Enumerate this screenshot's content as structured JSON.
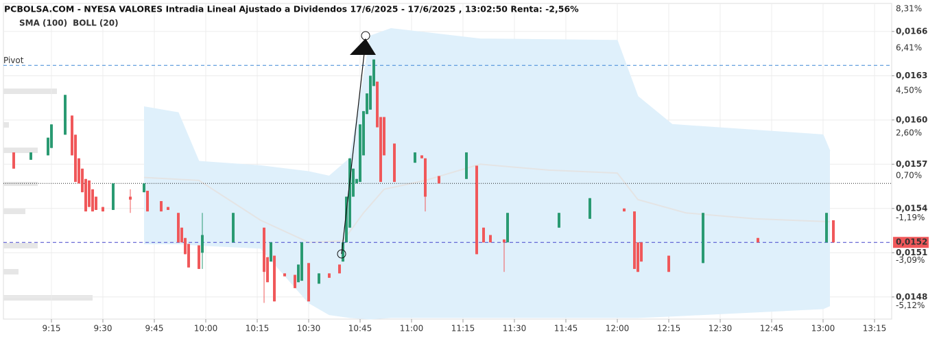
{
  "chart_data": {
    "type": "candlestick",
    "title": "PCBOLSA.COM - NYESA VALORES Intradia Lineal Ajustado a Dividendos 17/6/2025 - 17/6/2025 , 13:02:50 Renta: -2,56%",
    "legend": [
      {
        "name": "SMA (100)",
        "color": "#a9d3ef"
      },
      {
        "name": "BOLL (20)",
        "color": "#c8c8c8"
      }
    ],
    "up_color": "#2a9a72",
    "down_color": "#f0585a",
    "grid": true,
    "xlim": [
      "9:01",
      "13:20"
    ],
    "xticks": [
      "9:15",
      "9:30",
      "9:45",
      "10:00",
      "10:15",
      "10:30",
      "10:45",
      "11:00",
      "11:15",
      "11:30",
      "11:45",
      "12:00",
      "12:15",
      "12:30",
      "12:45",
      "13:00",
      "13:15"
    ],
    "ylim": [
      0.01465,
      0.01679
    ],
    "yticks": [
      {
        "value": 0.0166,
        "label": "0,0166"
      },
      {
        "value": 0.0163,
        "label": "0,0163"
      },
      {
        "value": 0.016,
        "label": "0,0160"
      },
      {
        "value": 0.0157,
        "label": "0,0157"
      },
      {
        "value": 0.0154,
        "label": "0,0154"
      },
      {
        "value": 0.0151,
        "label": "0,0151"
      },
      {
        "value": 0.0148,
        "label": "0,0148"
      }
    ],
    "y2lim": [
      -5.72,
      8.4
    ],
    "y2ticks": [
      {
        "value": 8.31,
        "label": "8,31%"
      },
      {
        "value": 6.41,
        "label": "6,41%"
      },
      {
        "value": 4.5,
        "label": "4,50%"
      },
      {
        "value": 2.6,
        "label": "2,60%"
      },
      {
        "value": 0.7,
        "label": "0,70%"
      },
      {
        "value": -1.19,
        "label": "-1,19%"
      },
      {
        "value": -3.09,
        "label": "-3,09%"
      },
      {
        "value": -5.12,
        "label": "-5,12%"
      }
    ],
    "pivot": {
      "label": "Pivot",
      "value": 0.01637,
      "color": "#3b86d6"
    },
    "previous_close": 0.01557,
    "last_price": {
      "value": 0.01517,
      "label": "0,0152",
      "color": "#4444cc"
    },
    "candles": {
      "x": [
        "9:04",
        "9:09",
        "9:14",
        "9:15",
        "9:19",
        "9:21",
        "9:22",
        "9:23",
        "9:24",
        "9:25",
        "9:26",
        "9:27",
        "9:28",
        "9:30",
        "9:33",
        "9:38",
        "9:42",
        "9:43",
        "9:47",
        "9:49",
        "9:52",
        "9:53",
        "9:54",
        "9:55",
        "9:58",
        "9:59",
        "10:08",
        "10:17",
        "10:18",
        "10:19",
        "10:20",
        "10:23",
        "10:26",
        "10:27",
        "10:28",
        "10:30",
        "10:33",
        "10:36",
        "10:39",
        "10:40",
        "10:41",
        "10:42",
        "10:43",
        "10:44",
        "10:45",
        "10:46",
        "10:47",
        "10:48",
        "10:49",
        "10:50",
        "10:51",
        "10:52",
        "10:55",
        "11:01",
        "11:03",
        "11:04",
        "11:08",
        "11:16",
        "11:19",
        "11:21",
        "11:23",
        "11:27",
        "11:28",
        "11:43",
        "11:52",
        "12:02",
        "12:05",
        "12:06",
        "12:07",
        "12:15",
        "12:25",
        "12:41",
        "13:01",
        "13:03"
      ],
      "open": [
        0.01578,
        0.01573,
        0.01576,
        0.01581,
        0.0159,
        0.01603,
        0.0159,
        0.01574,
        0.01567,
        0.0156,
        0.01559,
        0.01553,
        0.01548,
        0.01541,
        0.01539,
        0.01548,
        0.01551,
        0.01552,
        0.01545,
        0.01541,
        0.01537,
        0.01527,
        0.0152,
        0.01516,
        0.01515,
        0.0151,
        0.01517,
        0.01527,
        0.01507,
        0.01504,
        0.01508,
        0.01496,
        0.01495,
        0.0149,
        0.01491,
        0.01503,
        0.01489,
        0.01496,
        0.01502,
        0.01504,
        0.01517,
        0.01527,
        0.01548,
        0.01557,
        0.01558,
        0.01576,
        0.01604,
        0.01607,
        0.01623,
        0.01626,
        0.01602,
        0.01602,
        0.01584,
        0.01571,
        0.01576,
        0.01574,
        0.01562,
        0.0156,
        0.01569,
        0.01527,
        0.01522,
        0.01519,
        0.01517,
        0.01527,
        0.01533,
        0.0154,
        0.01538,
        0.01517,
        0.01517,
        0.01508,
        0.01503,
        0.0152,
        0.01517,
        0.01532
      ],
      "high": [
        0.01578,
        0.01578,
        0.01588,
        0.01597,
        0.01617,
        0.01603,
        0.0159,
        0.01574,
        0.01567,
        0.0156,
        0.01559,
        0.01553,
        0.01548,
        0.01541,
        0.01557,
        0.01553,
        0.01557,
        0.01552,
        0.01545,
        0.01541,
        0.01537,
        0.01527,
        0.0152,
        0.01516,
        0.01515,
        0.01537,
        0.01537,
        0.01527,
        0.01507,
        0.01517,
        0.01508,
        0.01496,
        0.01495,
        0.01502,
        0.01517,
        0.01503,
        0.01496,
        0.01496,
        0.01502,
        0.01517,
        0.01548,
        0.01574,
        0.01567,
        0.0156,
        0.01597,
        0.01606,
        0.01618,
        0.0163,
        0.01641,
        0.01626,
        0.01602,
        0.01602,
        0.01584,
        0.01578,
        0.01576,
        0.01574,
        0.01562,
        0.01578,
        0.01569,
        0.01527,
        0.01522,
        0.01519,
        0.01537,
        0.01537,
        0.01547,
        0.0154,
        0.01538,
        0.01517,
        0.01517,
        0.01508,
        0.01537,
        0.0152,
        0.01537,
        0.01532
      ],
      "low": [
        0.01567,
        0.01573,
        0.01576,
        0.01581,
        0.0159,
        0.01576,
        0.01558,
        0.01557,
        0.01551,
        0.01538,
        0.01541,
        0.01538,
        0.01539,
        0.01538,
        0.01539,
        0.01537,
        0.01551,
        0.01538,
        0.01538,
        0.01539,
        0.01517,
        0.01517,
        0.01509,
        0.015,
        0.01499,
        0.01499,
        0.01517,
        0.01476,
        0.0149,
        0.01504,
        0.01477,
        0.01494,
        0.01486,
        0.0149,
        0.01491,
        0.01477,
        0.01489,
        0.01493,
        0.01496,
        0.01504,
        0.01517,
        0.01527,
        0.01548,
        0.01557,
        0.01558,
        0.01576,
        0.01604,
        0.01607,
        0.01623,
        0.01595,
        0.01558,
        0.01576,
        0.01558,
        0.01571,
        0.01574,
        0.01538,
        0.01557,
        0.0156,
        0.01509,
        0.01517,
        0.01517,
        0.01497,
        0.01517,
        0.01527,
        0.01533,
        0.01538,
        0.01499,
        0.01497,
        0.01504,
        0.01497,
        0.01503,
        0.01517,
        0.01517,
        0.01517
      ],
      "close": [
        0.01567,
        0.01578,
        0.01588,
        0.01597,
        0.01617,
        0.01576,
        0.01558,
        0.01557,
        0.01551,
        0.01538,
        0.01541,
        0.01538,
        0.01539,
        0.01538,
        0.01557,
        0.01546,
        0.01557,
        0.01538,
        0.01538,
        0.01539,
        0.01517,
        0.01517,
        0.01509,
        0.015,
        0.01499,
        0.01522,
        0.01537,
        0.01497,
        0.0149,
        0.01517,
        0.01477,
        0.01494,
        0.01486,
        0.01502,
        0.01517,
        0.01477,
        0.01496,
        0.01493,
        0.01496,
        0.01517,
        0.01548,
        0.01574,
        0.01567,
        0.0156,
        0.01597,
        0.01606,
        0.01618,
        0.0163,
        0.01641,
        0.01595,
        0.01558,
        0.01576,
        0.01558,
        0.01578,
        0.01574,
        0.01548,
        0.01557,
        0.01578,
        0.01509,
        0.01517,
        0.01517,
        0.01517,
        0.01537,
        0.01537,
        0.01547,
        0.01538,
        0.01499,
        0.01497,
        0.01504,
        0.01497,
        0.01537,
        0.01517,
        0.01537,
        0.01517
      ]
    },
    "bollinger": {
      "color": "#dff0fb",
      "x": [
        "9:42",
        "9:52",
        "9:58",
        "10:16",
        "10:30",
        "10:36",
        "10:42",
        "10:48",
        "10:54",
        "11:20",
        "12:00",
        "12:06",
        "12:16",
        "13:00",
        "13:02"
      ],
      "upper": [
        0.01609,
        0.01605,
        0.01572,
        0.01569,
        0.01565,
        0.01562,
        0.01574,
        0.01657,
        0.01662,
        0.01655,
        0.01654,
        0.01616,
        0.01597,
        0.0159,
        0.01579
      ],
      "lower": [
        0.01516,
        0.01516,
        0.01515,
        0.01513,
        0.01476,
        0.01468,
        0.01466,
        0.01465,
        0.01466,
        0.01466,
        0.01466,
        0.01466,
        0.01467,
        0.01472,
        0.01474
      ]
    },
    "sma": {
      "color": "#e4e4e4",
      "x": [
        "9:42",
        "9:58",
        "10:16",
        "10:30",
        "10:40",
        "10:46",
        "10:52",
        "11:04",
        "11:20",
        "11:40",
        "12:00",
        "12:06",
        "12:20",
        "12:40",
        "13:02"
      ],
      "values": [
        0.01561,
        0.01559,
        0.01532,
        0.01517,
        0.01518,
        0.01537,
        0.01553,
        0.01559,
        0.0157,
        0.01566,
        0.01564,
        0.01546,
        0.01537,
        0.01533,
        0.01531
      ]
    }
  }
}
